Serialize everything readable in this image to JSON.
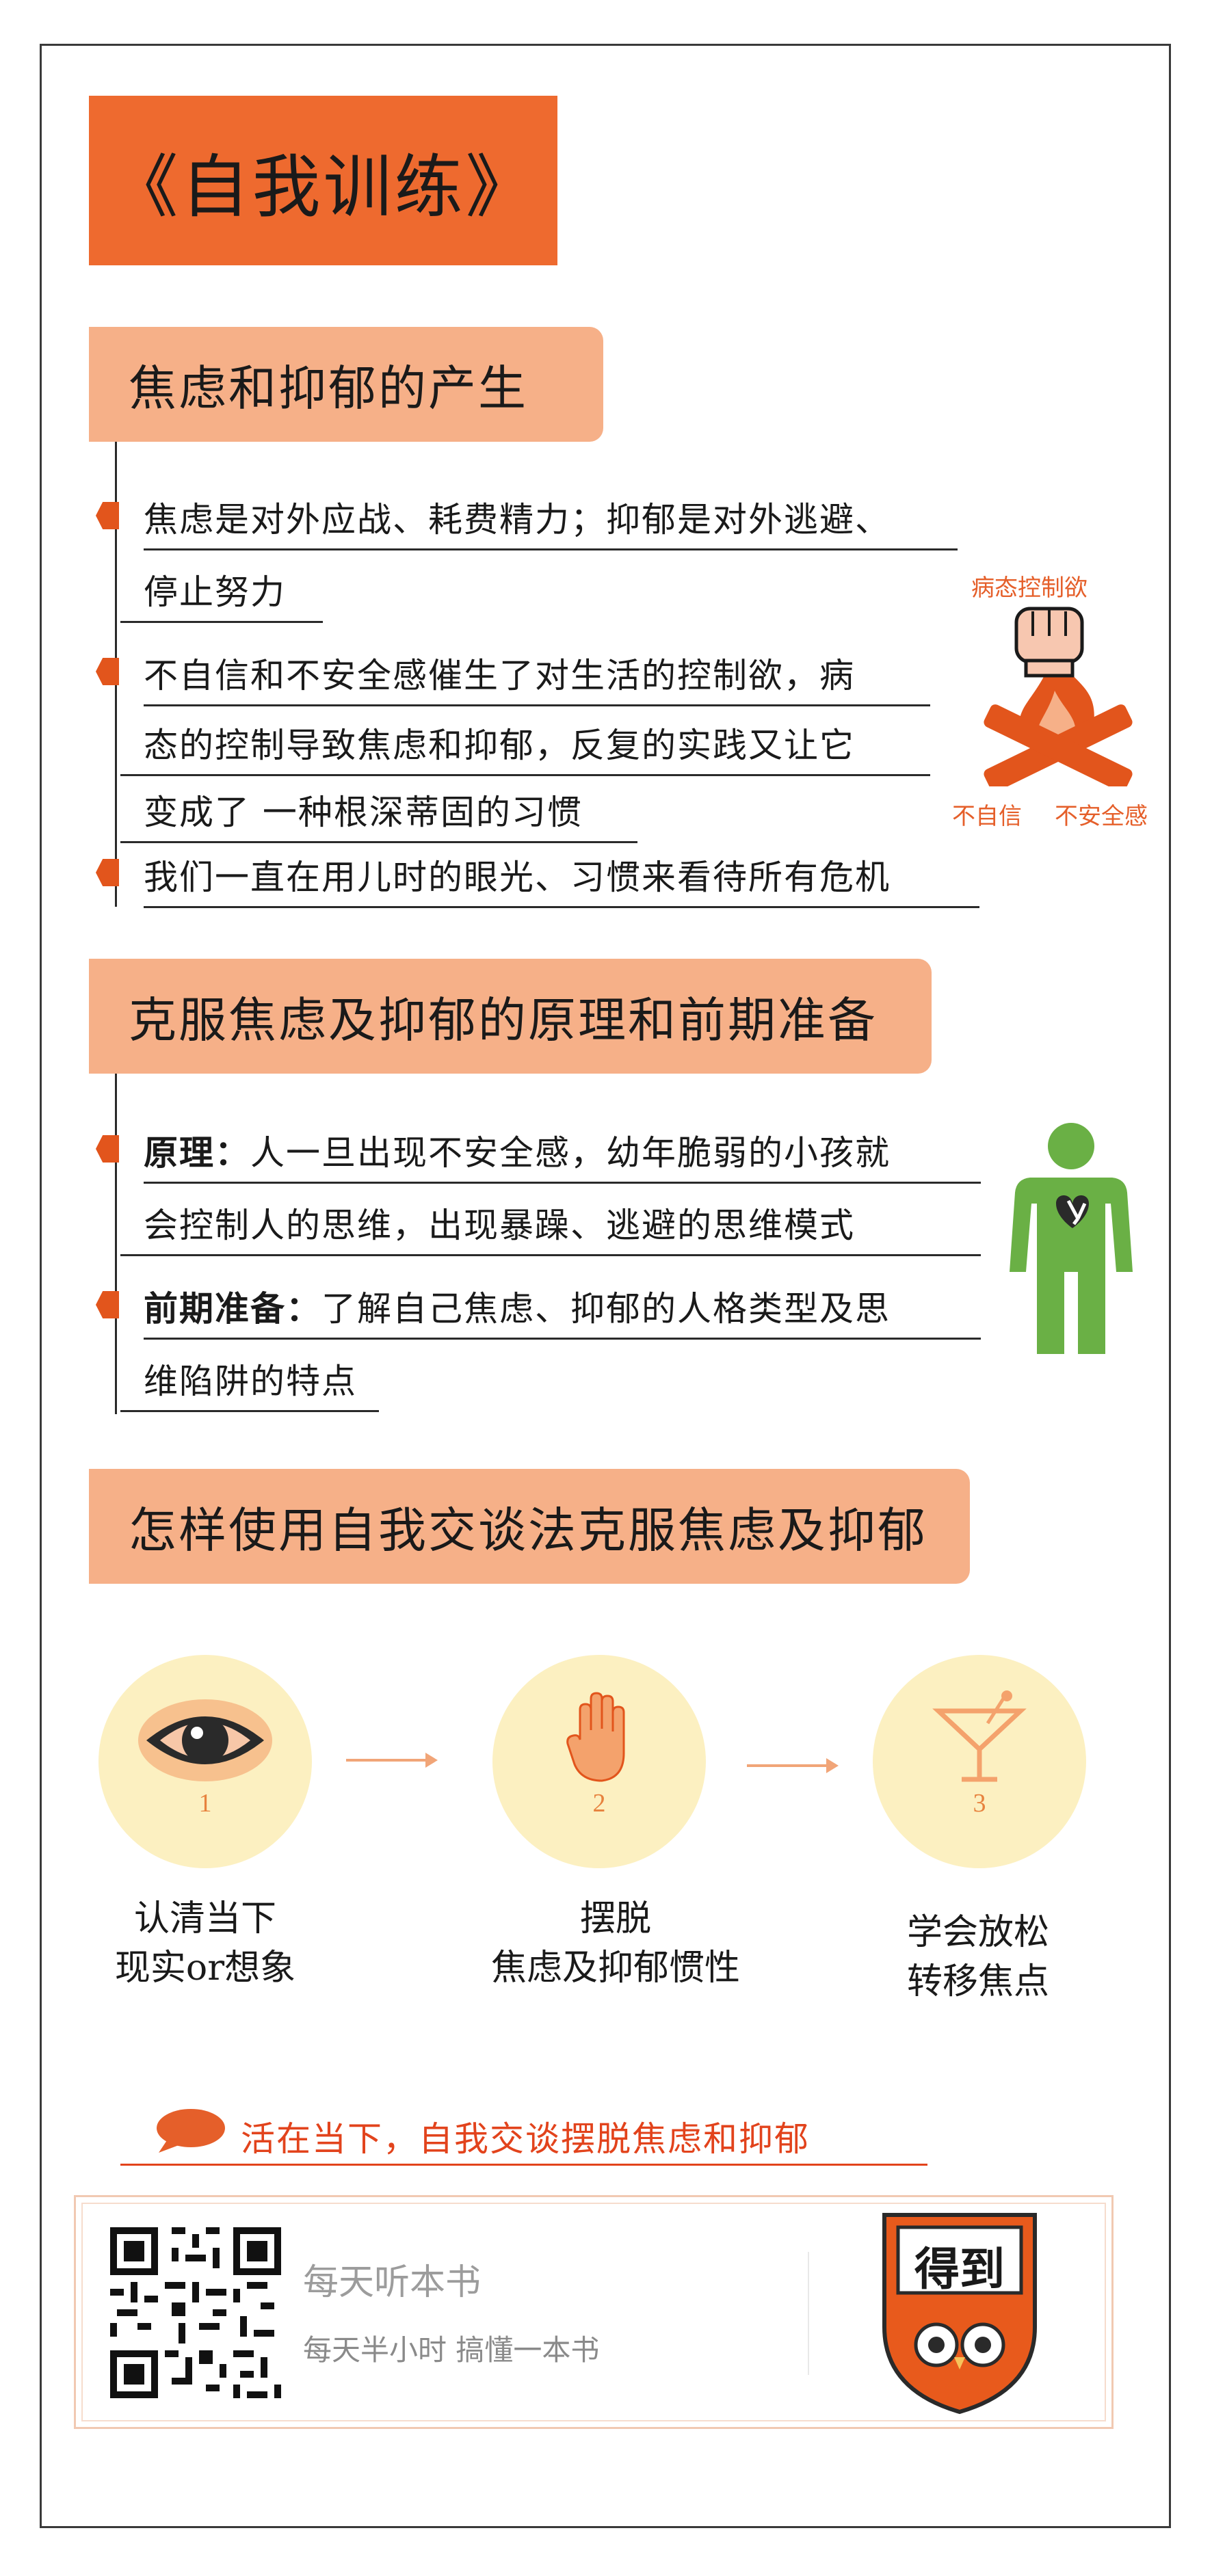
{
  "title": "《自我训练》",
  "section1": {
    "heading": "焦虑和抑郁的产生",
    "lines": [
      "焦虑是对外应战、耗费精力；抑郁是对外逃避、",
      "停止努力",
      "不自信和不安全感催生了对生活的控制欲，病",
      "态的控制导致焦虑和抑郁，反复的实践又让它",
      "变成了 一种根深蒂固的习惯",
      "我们一直在用儿时的眼光、习惯来看待所有危机"
    ],
    "figure": {
      "top_label": "病态控制欲",
      "left_label": "不自信",
      "right_label": "不安全感"
    }
  },
  "section2": {
    "heading": "克服焦虑及抑郁的原理和前期准备",
    "principle_label": "原理：",
    "principle_lines": [
      "人一旦出现不安全感，幼年脆弱的小孩就",
      "会控制人的思维，出现暴躁、逃避的思维模式"
    ],
    "prep_label": "前期准备：",
    "prep_lines": [
      "了解自己焦虑、抑郁的人格类型及思",
      "维陷阱的特点"
    ]
  },
  "section3": {
    "heading": "怎样使用自我交谈法克服焦虑及抑郁",
    "steps": [
      {
        "num": "1",
        "icon": "eye-icon",
        "caption_lines": [
          "认清当下",
          "现实or想象"
        ]
      },
      {
        "num": "2",
        "icon": "hand-icon",
        "caption_lines": [
          "摆脱",
          "焦虑及抑郁惯性"
        ]
      },
      {
        "num": "3",
        "icon": "cocktail-glass-icon",
        "caption_lines": [
          "学会放松",
          "转移焦点"
        ]
      }
    ]
  },
  "tagline": "活在当下，自我交谈摆脱焦虑和抑郁",
  "footer": {
    "slogan": "每天听本书",
    "subtitle": "每天半小时  搞懂一本书",
    "logo_text": "得到"
  },
  "colors": {
    "accent": "#ee6a2f",
    "header_bg": "#f6b088",
    "bullet": "#e2551c",
    "circle": "#fcf0c1",
    "green": "#6ab045"
  }
}
